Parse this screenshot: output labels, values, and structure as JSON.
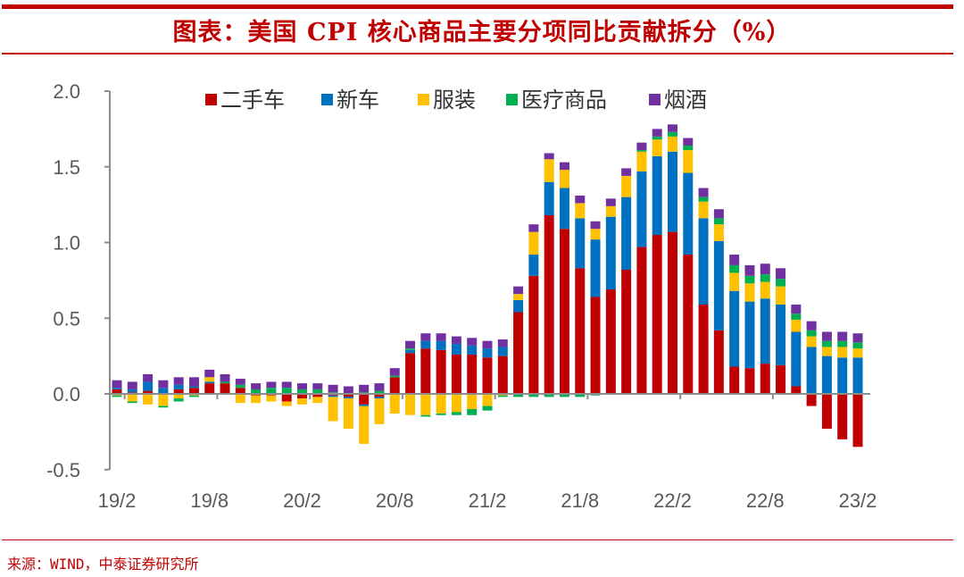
{
  "title": "图表：美国 CPI 核心商品主要分项同比贡献拆分（%）",
  "source": "来源：WIND，中泰证券研究所",
  "chart_data": {
    "type": "bar",
    "stacked": true,
    "title": "图表：美国 CPI 核心商品主要分项同比贡献拆分（%）",
    "xlabel": "",
    "ylabel": "",
    "ylim": [
      -0.5,
      2.0
    ],
    "yticks": [
      "2.0",
      "1.5",
      "1.0",
      "0.5",
      "0.0",
      "-0.5"
    ],
    "ytick_values": [
      2.0,
      1.5,
      1.0,
      0.5,
      0.0,
      -0.5
    ],
    "xtick_labels": [
      "19/2",
      "19/8",
      "20/2",
      "20/8",
      "21/2",
      "21/8",
      "22/2",
      "22/8",
      "23/2"
    ],
    "xtick_index": [
      0,
      6,
      12,
      18,
      24,
      30,
      36,
      42,
      48
    ],
    "legend_position": "top",
    "grid": false,
    "categories": [
      "19/2",
      "19/3",
      "19/4",
      "19/5",
      "19/6",
      "19/7",
      "19/8",
      "19/9",
      "19/10",
      "19/11",
      "19/12",
      "20/1",
      "20/2",
      "20/3",
      "20/4",
      "20/5",
      "20/6",
      "20/7",
      "20/8",
      "20/9",
      "20/10",
      "20/11",
      "20/12",
      "21/1",
      "21/2",
      "21/3",
      "21/4",
      "21/5",
      "21/6",
      "21/7",
      "21/8",
      "21/9",
      "21/10",
      "21/11",
      "21/12",
      "22/1",
      "22/2",
      "22/3",
      "22/4",
      "22/5",
      "22/6",
      "22/7",
      "22/8",
      "22/9",
      "22/10",
      "22/11",
      "22/12",
      "23/1",
      "23/2"
    ],
    "series": [
      {
        "name": "二手车",
        "color": "#c00000",
        "values": [
          0.03,
          0.01,
          0.02,
          0.0,
          0.03,
          0.04,
          0.07,
          0.07,
          0.04,
          -0.01,
          -0.01,
          -0.05,
          -0.03,
          -0.02,
          -0.01,
          -0.02,
          -0.07,
          -0.02,
          0.11,
          0.27,
          0.3,
          0.29,
          0.26,
          0.26,
          0.24,
          0.25,
          0.54,
          0.78,
          1.18,
          1.09,
          0.83,
          0.64,
          0.69,
          0.82,
          0.97,
          1.05,
          1.07,
          0.92,
          0.59,
          0.42,
          0.18,
          0.17,
          0.2,
          0.19,
          0.05,
          -0.08,
          -0.23,
          -0.3,
          -0.35
        ]
      },
      {
        "name": "新车",
        "color": "#0070c0",
        "values": [
          0.01,
          0.02,
          0.06,
          0.04,
          0.03,
          0.01,
          0.01,
          0.0,
          0.0,
          0.0,
          0.0,
          0.0,
          0.0,
          0.0,
          -0.01,
          -0.01,
          -0.01,
          -0.01,
          0.0,
          0.02,
          0.05,
          0.06,
          0.07,
          0.06,
          0.06,
          0.06,
          0.08,
          0.14,
          0.22,
          0.27,
          0.33,
          0.38,
          0.48,
          0.48,
          0.5,
          0.52,
          0.53,
          0.54,
          0.57,
          0.59,
          0.5,
          0.44,
          0.43,
          0.4,
          0.36,
          0.31,
          0.25,
          0.24,
          0.24
        ]
      },
      {
        "name": "服装",
        "color": "#ffc000",
        "values": [
          -0.01,
          -0.05,
          -0.07,
          -0.08,
          -0.03,
          -0.01,
          0.03,
          0.0,
          -0.06,
          -0.05,
          -0.04,
          -0.03,
          -0.04,
          -0.04,
          -0.16,
          -0.2,
          -0.25,
          -0.17,
          -0.13,
          -0.14,
          -0.14,
          -0.13,
          -0.12,
          -0.1,
          -0.08,
          -0.01,
          0.04,
          0.15,
          0.15,
          0.12,
          0.1,
          0.07,
          0.07,
          0.14,
          0.13,
          0.11,
          0.1,
          0.15,
          0.11,
          0.11,
          0.12,
          0.12,
          0.11,
          0.12,
          0.08,
          0.07,
          0.06,
          0.07,
          0.06
        ]
      },
      {
        "name": "医疗商品",
        "color": "#00b050",
        "values": [
          -0.01,
          -0.01,
          0.0,
          -0.01,
          -0.02,
          -0.01,
          0.0,
          0.01,
          0.02,
          0.03,
          0.04,
          0.04,
          0.03,
          0.03,
          0.01,
          0.0,
          0.01,
          0.02,
          0.01,
          0.01,
          -0.01,
          -0.01,
          -0.02,
          -0.04,
          -0.03,
          -0.01,
          -0.02,
          -0.02,
          -0.02,
          -0.02,
          -0.02,
          -0.01,
          0.0,
          0.0,
          0.01,
          0.02,
          0.03,
          0.03,
          0.03,
          0.04,
          0.05,
          0.05,
          0.05,
          0.05,
          0.04,
          0.04,
          0.04,
          0.04,
          0.04
        ]
      },
      {
        "name": "烟酒",
        "color": "#7030a0",
        "values": [
          0.05,
          0.05,
          0.05,
          0.05,
          0.05,
          0.06,
          0.05,
          0.05,
          0.04,
          0.04,
          0.04,
          0.04,
          0.04,
          0.04,
          0.05,
          0.05,
          0.05,
          0.05,
          0.05,
          0.05,
          0.05,
          0.05,
          0.05,
          0.05,
          0.05,
          0.05,
          0.05,
          0.05,
          0.04,
          0.05,
          0.05,
          0.05,
          0.05,
          0.05,
          0.05,
          0.05,
          0.05,
          0.05,
          0.06,
          0.06,
          0.07,
          0.07,
          0.07,
          0.07,
          0.06,
          0.06,
          0.06,
          0.06,
          0.06
        ]
      }
    ]
  }
}
